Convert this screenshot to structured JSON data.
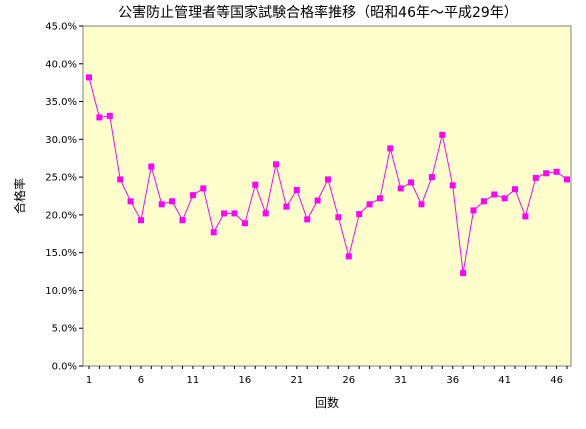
{
  "chart_data": {
    "type": "line",
    "title": "公害防止管理者等国家試験合格率推移（昭和46年～平成29年）",
    "xlabel": "回数",
    "ylabel": "合格率",
    "x_tick_labels": [
      "1",
      "6",
      "11",
      "16",
      "21",
      "26",
      "31",
      "36",
      "41",
      "46"
    ],
    "y_tick_labels": [
      "0.0%",
      "5.0%",
      "10.0%",
      "15.0%",
      "20.0%",
      "25.0%",
      "30.0%",
      "35.0%",
      "40.0%",
      "45.0%"
    ],
    "xlim": [
      1,
      47
    ],
    "ylim": [
      0,
      45
    ],
    "grid": false,
    "series": [
      {
        "color": "#ff00ff",
        "marker_color": "#ff00ff",
        "x": [
          1,
          2,
          3,
          4,
          5,
          6,
          7,
          8,
          9,
          10,
          11,
          12,
          13,
          14,
          15,
          16,
          17,
          18,
          19,
          20,
          21,
          22,
          23,
          24,
          25,
          26,
          27,
          28,
          29,
          30,
          31,
          32,
          33,
          34,
          35,
          36,
          37,
          38,
          39,
          40,
          41,
          42,
          43,
          44,
          45,
          46,
          47
        ],
        "values": [
          38.2,
          32.9,
          33.1,
          24.7,
          21.8,
          19.3,
          26.4,
          21.4,
          21.8,
          19.3,
          22.6,
          23.5,
          17.7,
          20.2,
          20.2,
          18.9,
          24.0,
          20.2,
          26.7,
          21.1,
          23.3,
          19.4,
          21.9,
          24.7,
          19.7,
          14.5,
          20.1,
          21.4,
          22.2,
          28.8,
          23.5,
          24.3,
          21.4,
          25.0,
          30.6,
          23.9,
          12.3,
          20.6,
          21.8,
          22.7,
          22.2,
          23.4,
          19.8,
          24.9,
          25.5,
          25.7,
          24.7
        ]
      }
    ],
    "colors": {
      "plot_background": "#ffffcc",
      "line": "#ff00ff",
      "marker": "#ff00ff"
    }
  }
}
